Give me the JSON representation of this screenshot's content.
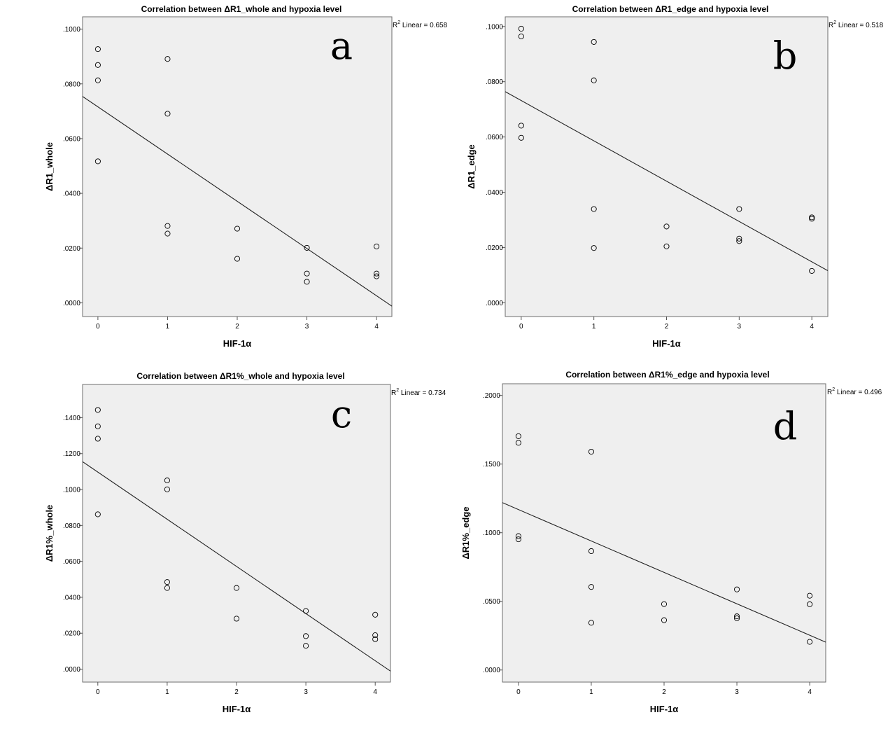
{
  "chart_data": [
    {
      "type": "scatter",
      "panel_label": "a",
      "title": "Correlation between ΔR1_whole and hypoxia level",
      "xlabel": "HIF-1α",
      "ylabel": "ΔR1_whole",
      "r2_prefix": "R",
      "r2_sup": "2",
      "r2_text": " Linear = 0.658",
      "xticks": [
        0,
        1,
        2,
        3,
        4
      ],
      "xtick_labels": [
        "0",
        "1",
        "2",
        "3",
        "4"
      ],
      "yticks": [
        0,
        0.02,
        0.04,
        0.06,
        0.08,
        0.1
      ],
      "ytick_labels": [
        ".0000",
        ".0200",
        ".0400",
        ".0600",
        ".0800",
        ".1000"
      ],
      "xlim": [
        -0.22,
        4.22
      ],
      "ylim": [
        -0.005,
        0.1045
      ],
      "points": [
        [
          0,
          0.0927
        ],
        [
          0,
          0.0869
        ],
        [
          0,
          0.0813
        ],
        [
          0,
          0.0517
        ],
        [
          1,
          0.0891
        ],
        [
          1,
          0.0691
        ],
        [
          1,
          0.0281
        ],
        [
          1,
          0.0253
        ],
        [
          2,
          0.0271
        ],
        [
          2,
          0.0161
        ],
        [
          3,
          0.0201
        ],
        [
          3,
          0.0107
        ],
        [
          3,
          0.0077
        ],
        [
          4,
          0.0206
        ],
        [
          4,
          0.0107
        ],
        [
          4,
          0.0097
        ]
      ],
      "fit_line": {
        "x": [
          -0.22,
          4.22
        ],
        "y": [
          0.0754,
          -0.0012
        ]
      }
    },
    {
      "type": "scatter",
      "panel_label": "b",
      "title": "Correlation between ΔR1_edge and hypoxia level",
      "xlabel": "HIF-1α",
      "ylabel": "ΔR1_edge",
      "r2_prefix": "R",
      "r2_sup": "2",
      "r2_text": " Linear = 0.518",
      "xticks": [
        0,
        1,
        2,
        3,
        4
      ],
      "xtick_labels": [
        "0",
        "1",
        "2",
        "3",
        "4"
      ],
      "yticks": [
        0,
        0.02,
        0.04,
        0.06,
        0.08,
        0.1
      ],
      "ytick_labels": [
        ".0000",
        ".0200",
        ".0400",
        ".0600",
        ".0800",
        ".1000"
      ],
      "xlim": [
        -0.22,
        4.22
      ],
      "ylim": [
        -0.005,
        0.1035
      ],
      "points": [
        [
          0,
          0.0992
        ],
        [
          0,
          0.0964
        ],
        [
          0,
          0.0641
        ],
        [
          0,
          0.0597
        ],
        [
          1,
          0.0944
        ],
        [
          1,
          0.0805
        ],
        [
          1,
          0.0339
        ],
        [
          1,
          0.0198
        ],
        [
          2,
          0.0276
        ],
        [
          2,
          0.0204
        ],
        [
          3,
          0.0339
        ],
        [
          3,
          0.0232
        ],
        [
          3,
          0.0223
        ],
        [
          4,
          0.0309
        ],
        [
          4,
          0.0304
        ],
        [
          4,
          0.0115
        ]
      ],
      "fit_line": {
        "x": [
          -0.22,
          4.22
        ],
        "y": [
          0.0764,
          0.0116
        ]
      }
    },
    {
      "type": "scatter",
      "panel_label": "c",
      "title": "Correlation between ΔR1%_whole and hypoxia level",
      "xlabel": "HIF-1α",
      "ylabel": "ΔR1%_whole",
      "r2_prefix": "R",
      "r2_sup": "2",
      "r2_text": " Linear = 0.734",
      "xticks": [
        0,
        1,
        2,
        3,
        4
      ],
      "xtick_labels": [
        "0",
        "1",
        "2",
        "3",
        "4"
      ],
      "yticks": [
        0,
        0.02,
        0.04,
        0.06,
        0.08,
        0.1,
        0.12,
        0.14
      ],
      "ytick_labels": [
        ".0000",
        ".0200",
        ".0400",
        ".0600",
        ".0800",
        ".1000",
        ".1200",
        ".1400"
      ],
      "xlim": [
        -0.22,
        4.22
      ],
      "ylim": [
        -0.0072,
        0.1585
      ],
      "points": [
        [
          0,
          0.1443
        ],
        [
          0,
          0.1352
        ],
        [
          0,
          0.1283
        ],
        [
          0,
          0.0862
        ],
        [
          1,
          0.1051
        ],
        [
          1,
          0.1001
        ],
        [
          1,
          0.0485
        ],
        [
          1,
          0.0452
        ],
        [
          2,
          0.0452
        ],
        [
          2,
          0.0281
        ],
        [
          3,
          0.0324
        ],
        [
          3,
          0.0184
        ],
        [
          3,
          0.013
        ],
        [
          4,
          0.0303
        ],
        [
          4,
          0.0189
        ],
        [
          4,
          0.0167
        ]
      ],
      "fit_line": {
        "x": [
          -0.22,
          4.22
        ],
        "y": [
          0.1155,
          -0.0011
        ]
      }
    },
    {
      "type": "scatter",
      "panel_label": "d",
      "title": "Correlation between ΔR1%_edge and hypoxia level",
      "xlabel": "HIF-1α",
      "ylabel": "ΔR1%_edge",
      "r2_prefix": "R",
      "r2_sup": "2",
      "r2_text": " Linear = 0.496",
      "xticks": [
        0,
        1,
        2,
        3,
        4
      ],
      "xtick_labels": [
        "0",
        "1",
        "2",
        "3",
        "4"
      ],
      "yticks": [
        0,
        0.05,
        0.1,
        0.15,
        0.2
      ],
      "ytick_labels": [
        ".0000",
        ".0500",
        ".1000",
        ".1500",
        ".2000"
      ],
      "xlim": [
        -0.22,
        4.22
      ],
      "ylim": [
        -0.0088,
        0.2085
      ],
      "points": [
        [
          0,
          0.1703
        ],
        [
          0,
          0.1655
        ],
        [
          0,
          0.0975
        ],
        [
          0,
          0.0952
        ],
        [
          1,
          0.159
        ],
        [
          1,
          0.0866
        ],
        [
          1,
          0.0605
        ],
        [
          1,
          0.0344
        ],
        [
          2,
          0.048
        ],
        [
          2,
          0.0363
        ],
        [
          3,
          0.0587
        ],
        [
          3,
          0.0391
        ],
        [
          3,
          0.0377
        ],
        [
          4,
          0.0541
        ],
        [
          4,
          0.0479
        ],
        [
          4,
          0.0205
        ]
      ],
      "fit_line": {
        "x": [
          -0.22,
          4.22
        ],
        "y": [
          0.1219,
          0.0203
        ]
      }
    }
  ]
}
